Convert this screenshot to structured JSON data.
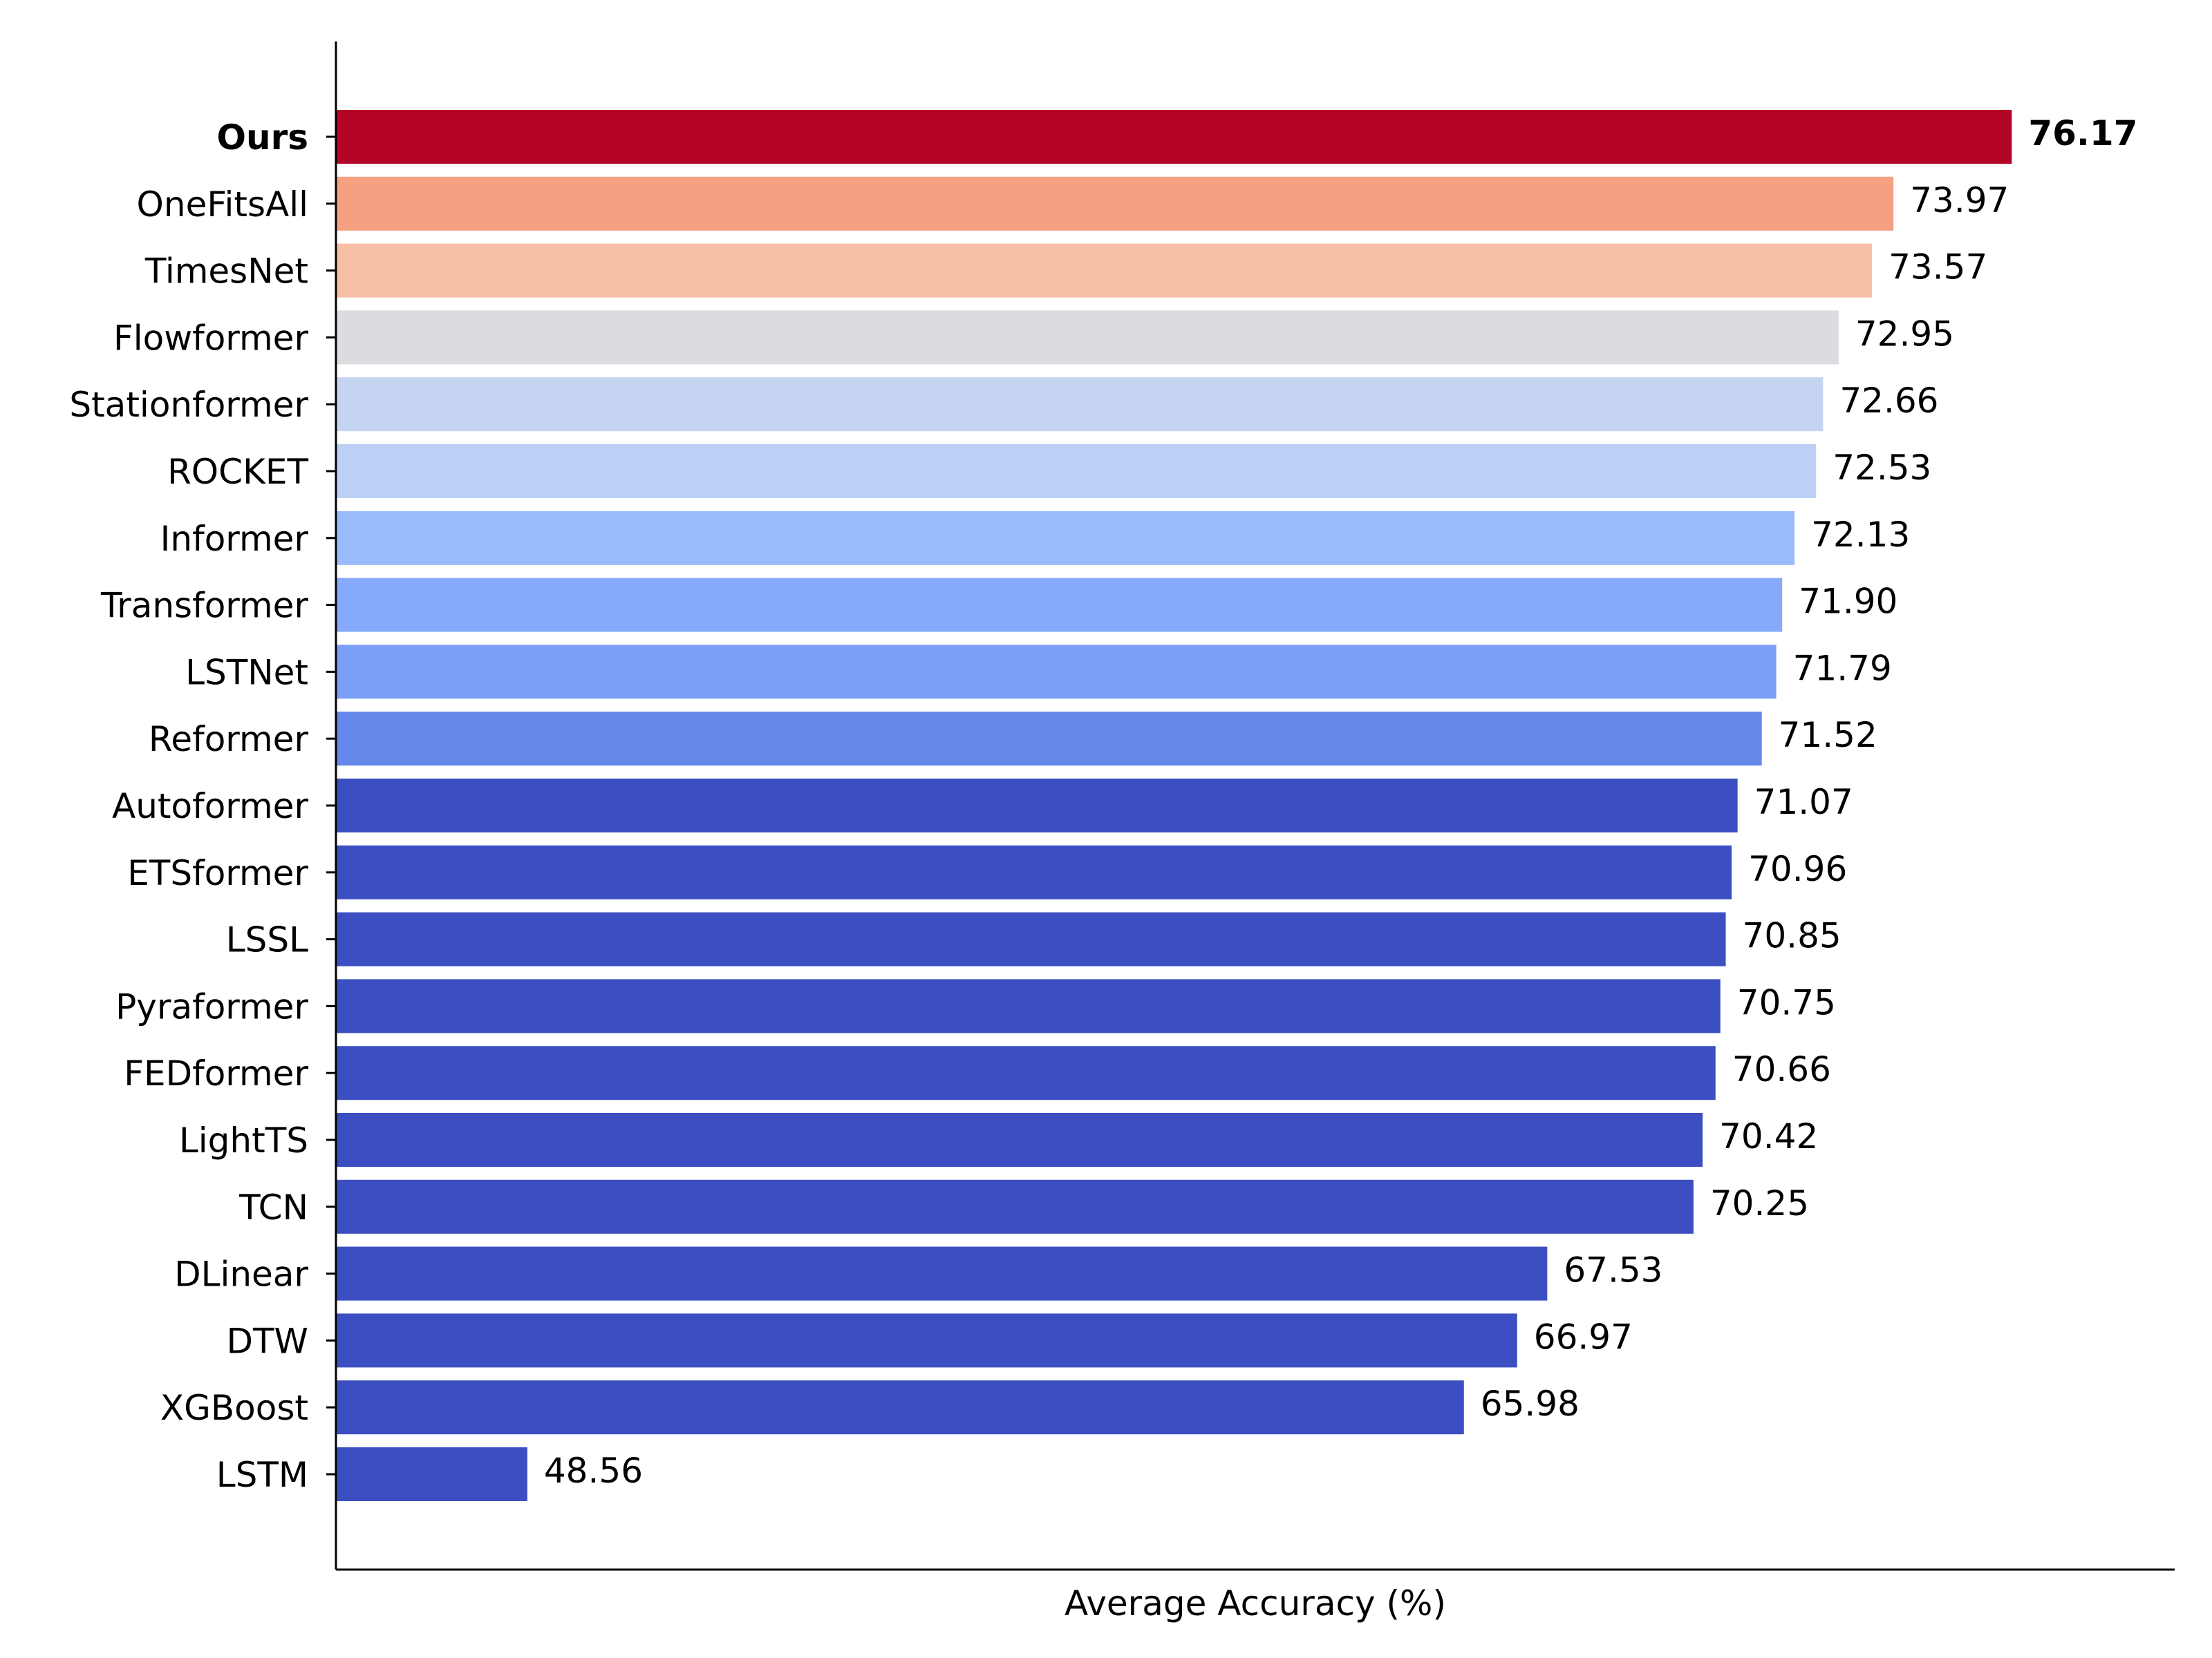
{
  "chart_data": {
    "type": "bar",
    "orientation": "horizontal",
    "title": "",
    "xlabel": "Average Accuracy (%)",
    "ylabel": "",
    "xlim": [
      45,
      79.2
    ],
    "grid": false,
    "legend": "none",
    "highlight": {
      "category": "Ours",
      "color": "#ff0000",
      "bold": true
    },
    "categories": [
      "Ours",
      "OneFitsAll",
      "TimesNet",
      "Flowformer",
      "Stationformer",
      "ROCKET",
      "Informer",
      "Transformer",
      "LSTNet",
      "Reformer",
      "Autoformer",
      "ETSformer",
      "LSSL",
      "Pyraformer",
      "FEDformer",
      "LightTS",
      "TCN",
      "DLinear",
      "DTW",
      "XGBoost",
      "LSTM"
    ],
    "values": [
      76.17,
      73.97,
      73.57,
      72.95,
      72.66,
      72.53,
      72.13,
      71.9,
      71.79,
      71.52,
      71.07,
      70.96,
      70.85,
      70.75,
      70.66,
      70.42,
      70.25,
      67.53,
      66.97,
      65.98,
      48.56
    ],
    "value_labels": [
      "76.17",
      "73.97",
      "73.57",
      "72.95",
      "72.66",
      "72.53",
      "72.13",
      "71.90",
      "71.79",
      "71.52",
      "71.07",
      "70.96",
      "70.85",
      "70.75",
      "70.66",
      "70.42",
      "70.25",
      "67.53",
      "66.97",
      "65.98",
      "48.56"
    ],
    "colors": [
      "#b40426",
      "#f4a081",
      "#f6bfa6",
      "#dadce0",
      "#c5d5f1",
      "#bcd0f6",
      "#9abbfc",
      "#86a9fb",
      "#7b9ff7",
      "#6688ea",
      "#3c4fc2",
      "#3c4fc2",
      "#3c4fc2",
      "#3c4fc2",
      "#3c4fc2",
      "#3c4fc2",
      "#3c4fc2",
      "#3c4fc2",
      "#3c4fc2",
      "#3c4fc2",
      "#3c4fc2"
    ]
  }
}
